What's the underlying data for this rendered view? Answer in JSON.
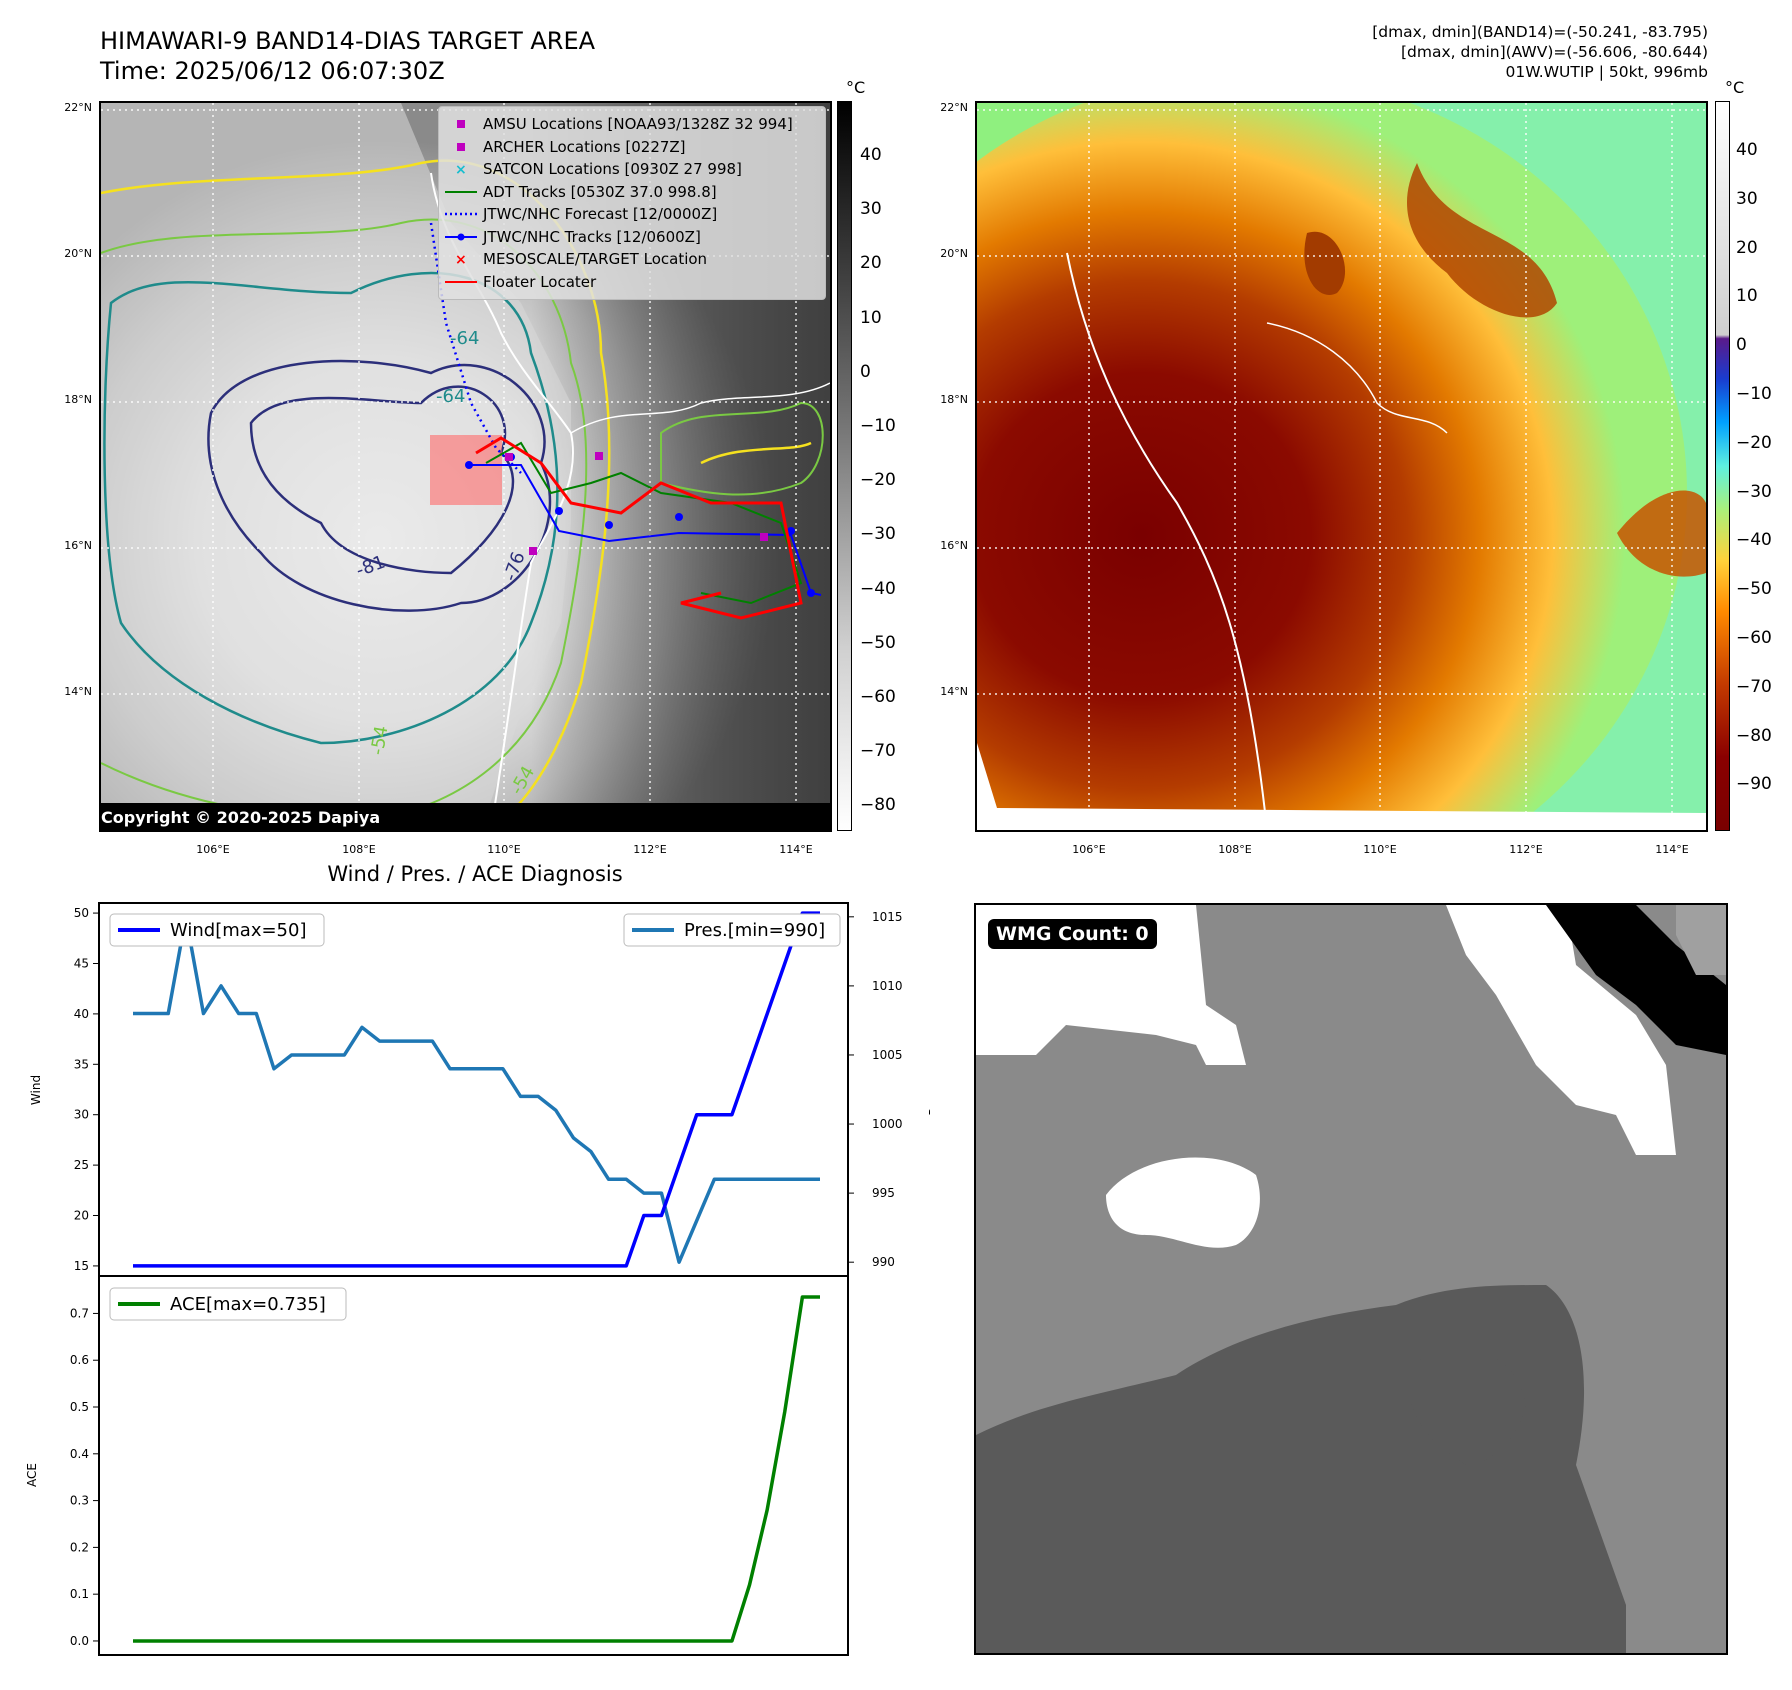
{
  "header": {
    "title_line1": "HIMAWARI-9 BAND14-DIAS TARGET AREA",
    "title_line2": "Time: 2025/06/12 06:07:30Z",
    "info_line1": "[dmax, dmin](BAND14)=(-50.241, -83.795)",
    "info_line2": "[dmax, dmin](AWV)=(-56.606, -80.644)",
    "info_line3": "01W.WUTIP | 50kt, 996mb"
  },
  "map_axes": {
    "lat_labels": [
      "22°N",
      "20°N",
      "18°N",
      "16°N",
      "14°N"
    ],
    "lon_labels": [
      "106°E",
      "108°E",
      "110°E",
      "112°E",
      "114°E"
    ]
  },
  "colorbar_left": {
    "unit": "°C",
    "ticks": [
      "40",
      "30",
      "20",
      "10",
      "0",
      "−10",
      "−20",
      "−30",
      "−40",
      "−50",
      "−60",
      "−70",
      "−80"
    ]
  },
  "colorbar_right": {
    "unit": "°C",
    "ticks": [
      "40",
      "30",
      "20",
      "10",
      "0",
      "−10",
      "−20",
      "−30",
      "−40",
      "−50",
      "−60",
      "−70",
      "−80",
      "−90"
    ]
  },
  "legend": {
    "items": [
      {
        "label": "AMSU Locations [NOAA93/1328Z 32 994]",
        "color": "#bf00bf",
        "symbol": "square"
      },
      {
        "label": "ARCHER Locations [0227Z]",
        "color": "#bf00bf",
        "symbol": "square"
      },
      {
        "label": "SATCON Locations [0930Z 27 998]",
        "color": "#17becf",
        "symbol": "x"
      },
      {
        "label": "ADT Tracks [0530Z 37.0 998.8]",
        "color": "#008000",
        "symbol": "line"
      },
      {
        "label": "JTWC/NHC Forecast [12/0000Z]",
        "color": "#0000ff",
        "symbol": "dotted"
      },
      {
        "label": "JTWC/NHC Tracks [12/0600Z]",
        "color": "#0000ff",
        "symbol": "line-dot"
      },
      {
        "label": "MESOSCALE/TARGET Location",
        "color": "#ff0000",
        "symbol": "x"
      },
      {
        "label": "Floater Locater",
        "color": "#ff0000",
        "symbol": "line"
      }
    ]
  },
  "contour_labels": [
    "-81",
    "-76",
    "-64",
    "-64",
    "-54",
    "-54"
  ],
  "copyright": "Copyright © 2020-2025 Dapiya",
  "wmg": {
    "badge": "WMG Count: 0"
  },
  "chart_data": [
    {
      "type": "line",
      "title": "Wind / Pres. / ACE Diagnosis",
      "ylabel": "Wind",
      "ylabel_right": "Pressure",
      "ylim": [
        14,
        51
      ],
      "ylim_right": [
        989,
        1016
      ],
      "yticks": [
        "50",
        "45",
        "40",
        "35",
        "30",
        "25",
        "20",
        "15"
      ],
      "yticks_right": [
        "1015",
        "1010",
        "1005",
        "1000",
        "995",
        "990"
      ],
      "x": [
        0,
        1,
        2,
        3,
        4,
        5,
        6,
        7,
        8,
        9,
        10,
        11,
        12,
        13,
        14,
        15,
        16,
        17,
        18,
        19,
        20,
        21,
        22,
        23,
        24,
        25,
        26,
        27,
        28,
        29,
        30,
        31,
        32,
        33,
        34,
        35,
        36,
        37,
        38,
        39
      ],
      "series": [
        {
          "name": "Wind[max=50]",
          "axis": "left",
          "color": "#0000ff",
          "values": [
            15,
            15,
            15,
            15,
            15,
            15,
            15,
            15,
            15,
            15,
            15,
            15,
            15,
            15,
            15,
            15,
            15,
            15,
            15,
            15,
            15,
            15,
            15,
            15,
            15,
            15,
            15,
            15,
            15,
            20,
            20,
            25,
            30,
            30,
            30,
            35,
            40,
            45,
            50,
            50
          ]
        },
        {
          "name": "Pres.[min=990]",
          "axis": "right",
          "color": "#1f77b4",
          "values": [
            1008,
            1008,
            1008,
            1015,
            1008,
            1010,
            1008,
            1008,
            1004,
            1005,
            1005,
            1005,
            1005,
            1007,
            1006,
            1006,
            1006,
            1006,
            1004,
            1004,
            1004,
            1004,
            1002,
            1002,
            1001,
            999,
            998,
            996,
            996,
            995,
            995,
            990,
            993,
            996,
            996,
            996,
            996,
            996,
            996,
            996
          ]
        }
      ]
    },
    {
      "type": "line",
      "ylabel": "ACE",
      "ylim": [
        -0.03,
        0.78
      ],
      "yticks": [
        "0.7",
        "0.6",
        "0.5",
        "0.4",
        "0.3",
        "0.2",
        "0.1",
        "0.0"
      ],
      "x": [
        0,
        1,
        2,
        3,
        4,
        5,
        6,
        7,
        8,
        9,
        10,
        11,
        12,
        13,
        14,
        15,
        16,
        17,
        18,
        19,
        20,
        21,
        22,
        23,
        24,
        25,
        26,
        27,
        28,
        29,
        30,
        31,
        32,
        33,
        34,
        35,
        36,
        37,
        38,
        39
      ],
      "series": [
        {
          "name": "ACE[max=0.735]",
          "color": "#008000",
          "values": [
            0,
            0,
            0,
            0,
            0,
            0,
            0,
            0,
            0,
            0,
            0,
            0,
            0,
            0,
            0,
            0,
            0,
            0,
            0,
            0,
            0,
            0,
            0,
            0,
            0,
            0,
            0,
            0,
            0,
            0,
            0,
            0,
            0,
            0,
            0,
            0.12,
            0.28,
            0.49,
            0.735,
            0.735
          ]
        }
      ]
    }
  ]
}
